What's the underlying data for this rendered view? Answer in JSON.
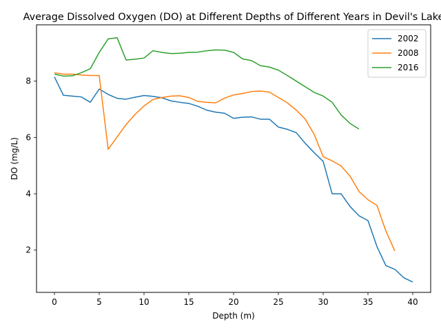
{
  "chart_data": {
    "type": "line",
    "title": "Average Dissolved Oxygen (DO) at Different Depths of Different Years in Devil's Lake",
    "xlabel": "Depth (m)",
    "ylabel": "DO (mg/L)",
    "xlim": [
      -2,
      42
    ],
    "ylim": [
      0.5,
      10.0
    ],
    "xticks": [
      0,
      5,
      10,
      15,
      20,
      25,
      30,
      35,
      40
    ],
    "yticks": [
      2,
      4,
      6,
      8
    ],
    "grid": false,
    "legend_position": "top-right",
    "series": [
      {
        "name": "2002",
        "color": "#1f77b4",
        "x": [
          0,
          1,
          2,
          3,
          4,
          5,
          6,
          7,
          8,
          9,
          10,
          11,
          12,
          13,
          14,
          15,
          16,
          17,
          18,
          19,
          20,
          21,
          22,
          23,
          24,
          25,
          26,
          27,
          28,
          29,
          30,
          31,
          32,
          33,
          34,
          35,
          36,
          37,
          38,
          39,
          40
        ],
        "y": [
          8.15,
          7.5,
          7.47,
          7.44,
          7.25,
          7.72,
          7.53,
          7.39,
          7.36,
          7.43,
          7.49,
          7.46,
          7.41,
          7.3,
          7.25,
          7.21,
          7.11,
          6.97,
          6.9,
          6.86,
          6.68,
          6.72,
          6.73,
          6.65,
          6.65,
          6.37,
          6.29,
          6.17,
          5.79,
          5.46,
          5.15,
          4.0,
          4.0,
          3.55,
          3.22,
          3.05,
          2.13,
          1.45,
          1.32,
          1.02,
          0.87
        ]
      },
      {
        "name": "2008",
        "color": "#ff7f0e",
        "x": [
          0,
          1,
          2,
          3,
          4,
          5,
          6,
          7,
          8,
          9,
          10,
          11,
          12,
          13,
          14,
          15,
          16,
          17,
          18,
          19,
          20,
          21,
          22,
          23,
          24,
          25,
          26,
          27,
          28,
          29,
          30,
          31,
          32,
          33,
          34,
          35,
          36,
          37,
          38
        ],
        "y": [
          8.3,
          8.25,
          8.25,
          8.22,
          8.2,
          8.2,
          5.58,
          6.02,
          6.46,
          6.82,
          7.12,
          7.35,
          7.42,
          7.47,
          7.48,
          7.42,
          7.28,
          7.25,
          7.23,
          7.4,
          7.51,
          7.56,
          7.63,
          7.65,
          7.61,
          7.42,
          7.23,
          6.97,
          6.65,
          6.11,
          5.32,
          5.17,
          4.99,
          4.63,
          4.08,
          3.79,
          3.59,
          2.68,
          1.97
        ]
      },
      {
        "name": "2016",
        "color": "#2ca02c",
        "x": [
          0,
          1,
          2,
          3,
          4,
          5,
          6,
          7,
          8,
          9,
          10,
          11,
          12,
          13,
          14,
          15,
          16,
          17,
          18,
          19,
          20,
          21,
          22,
          23,
          24,
          25,
          26,
          27,
          28,
          29,
          30,
          31,
          32,
          33,
          34
        ],
        "y": [
          8.25,
          8.18,
          8.19,
          8.3,
          8.44,
          9.02,
          9.5,
          9.54,
          8.75,
          8.78,
          8.82,
          9.08,
          9.02,
          8.98,
          8.99,
          9.02,
          9.03,
          9.08,
          9.11,
          9.1,
          9.02,
          8.79,
          8.73,
          8.55,
          8.5,
          8.39,
          8.2,
          8.0,
          7.8,
          7.6,
          7.47,
          7.25,
          6.8,
          6.5,
          6.3
        ]
      }
    ]
  }
}
